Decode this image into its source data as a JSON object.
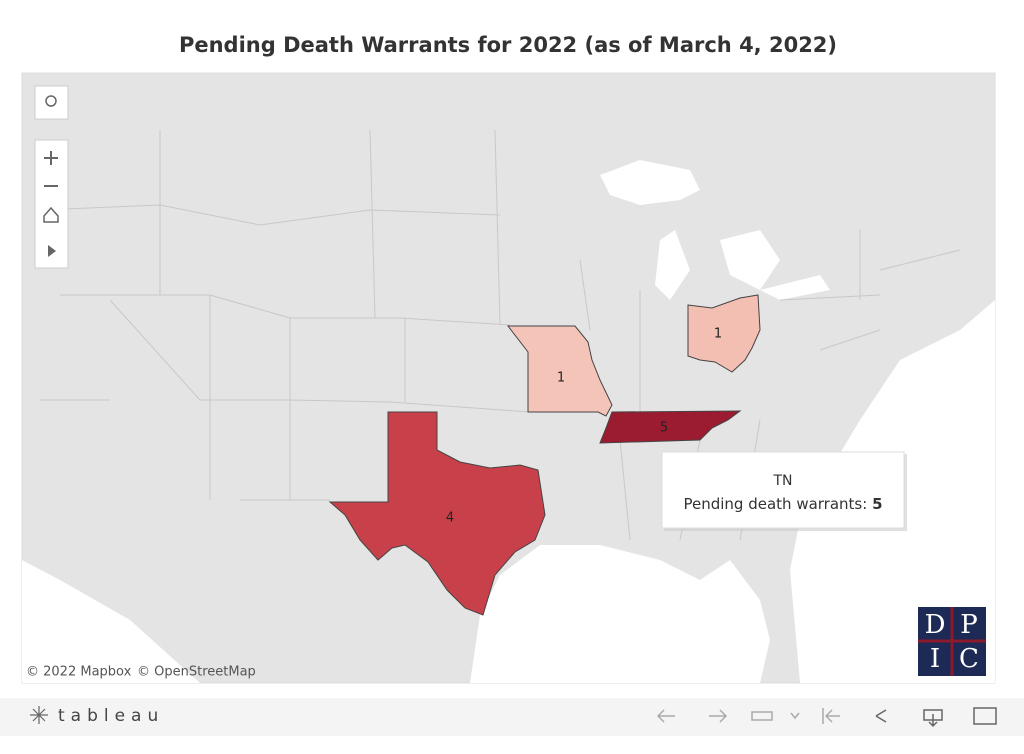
{
  "title": "Pending Death Warrants for 2022 (as of March 4, 2022)",
  "map": {
    "states": [
      {
        "value": 4,
        "color": "#c8414a"
      },
      {
        "value": 5,
        "color": "#9b1c31"
      },
      {
        "value": 1,
        "color": "#f4c4b8"
      },
      {
        "value": 1,
        "color": "#f3bfb2"
      }
    ]
  },
  "tooltip": {
    "title": "TN",
    "label": "Pending death warrants:",
    "value": 5
  },
  "attribution": [
    "© 2022 Mapbox",
    "© OpenStreetMap"
  ],
  "logo": [
    "D",
    "P",
    "I",
    "C"
  ],
  "toolbar": {
    "brand": "tableau"
  }
}
